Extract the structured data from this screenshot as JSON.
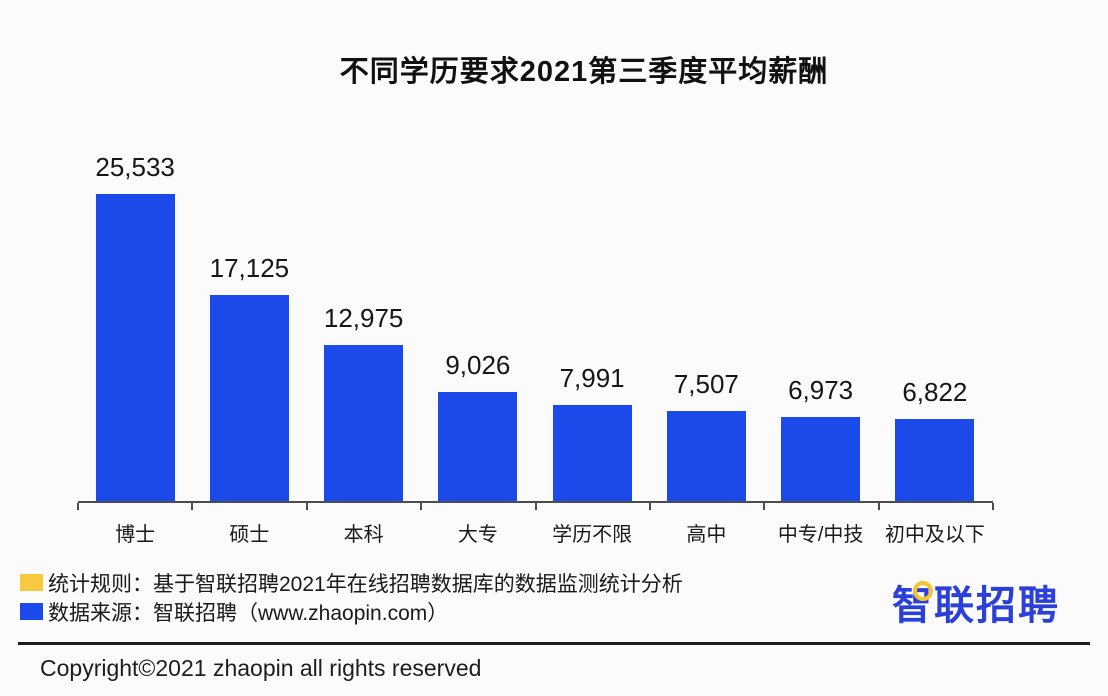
{
  "title": "不同学历要求2021第三季度平均薪酬",
  "chart_data": {
    "type": "bar",
    "title": "不同学历要求2021第三季度平均薪酬",
    "categories": [
      "博士",
      "硕士",
      "本科",
      "大专",
      "学历不限",
      "高中",
      "中专/中技",
      "初中及以下"
    ],
    "values": [
      25533,
      17125,
      12975,
      9026,
      7991,
      7507,
      6973,
      6822
    ],
    "value_labels": [
      "25,533",
      "17,125",
      "12,975",
      "9,026",
      "7,991",
      "7,507",
      "6,973",
      "6,822"
    ],
    "xlabel": "",
    "ylabel": "",
    "ylim": [
      0,
      26000
    ],
    "grid": false,
    "legend_position": "none",
    "bar_color": "#1b49ea",
    "axis_color": "#4d4d4d"
  },
  "footer": {
    "legend": [
      {
        "swatch_color": "#f6c93e",
        "label": "统计规则：基于智联招聘2021年在线招聘数据库的数据监测统计分析"
      },
      {
        "swatch_color": "#1b49ea",
        "label": "数据来源：智联招聘（www.zhaopin.com）"
      }
    ],
    "logo_text": "智联招聘",
    "logo_color": "#2b3fd9",
    "logo_dot_color": "#f5c531",
    "copyright": "Copyright©2021 zhaopin all rights reserved"
  }
}
